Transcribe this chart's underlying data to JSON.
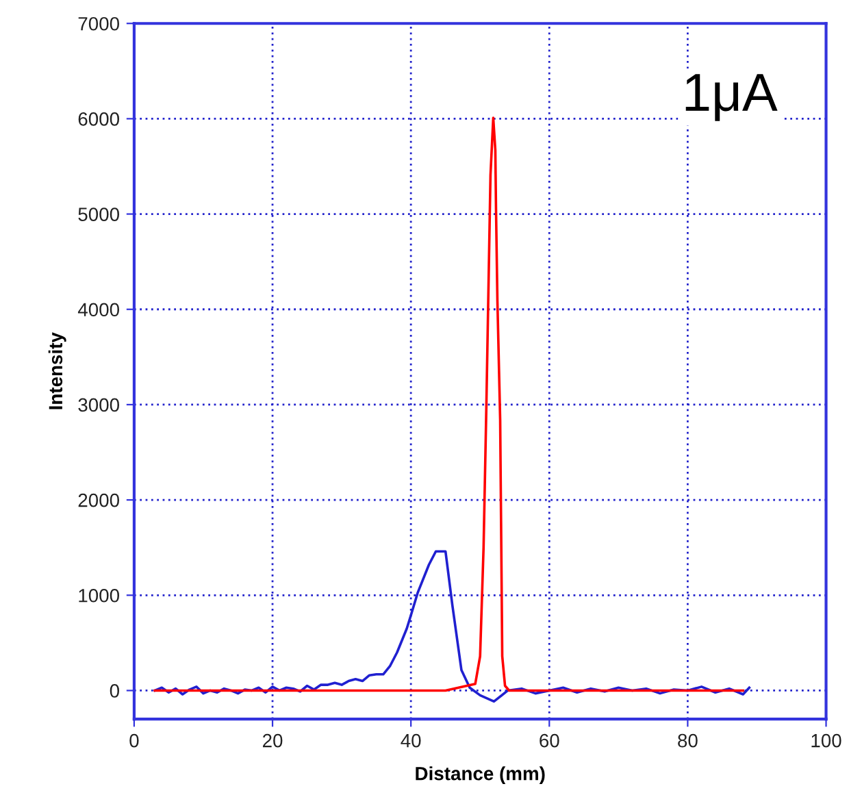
{
  "chart_data": {
    "type": "line",
    "xlabel": "Distance (mm)",
    "ylabel": "Intensity",
    "annotations": [
      "1μA"
    ],
    "xlim": [
      0,
      100
    ],
    "xticks": [
      0,
      20,
      40,
      60,
      80,
      100
    ],
    "ylim": [
      -300,
      7000
    ],
    "yticks": [
      0,
      1000,
      2000,
      3000,
      4000,
      5000,
      6000,
      7000
    ],
    "grid": true,
    "marker": "none",
    "line_style": "solid",
    "series": [
      {
        "color": "#2020d0",
        "x": [
          3,
          4,
          5,
          6,
          7,
          8,
          9,
          10,
          11,
          12,
          13,
          14,
          15,
          16,
          17,
          18,
          19,
          20,
          21,
          22,
          23,
          24,
          25,
          26,
          27,
          28,
          29,
          30,
          31,
          32,
          33,
          34,
          35,
          36,
          37,
          38,
          39.4,
          40,
          41,
          42.6,
          43.6,
          45,
          46,
          47.3,
          48.5,
          50,
          52,
          54,
          56,
          58,
          60,
          62,
          64,
          66,
          68,
          70,
          72,
          74,
          76,
          78,
          80,
          82,
          84,
          86,
          88,
          88.9
        ],
        "values": [
          0,
          30,
          -20,
          20,
          -40,
          10,
          40,
          -30,
          0,
          -20,
          20,
          0,
          -30,
          10,
          0,
          30,
          -20,
          40,
          0,
          30,
          20,
          -10,
          50,
          10,
          60,
          60,
          80,
          60,
          100,
          120,
          100,
          160,
          170,
          170,
          260,
          400,
          650,
          790,
          1030,
          1320,
          1460,
          1460,
          890,
          215,
          30,
          -50,
          -115,
          0,
          20,
          -30,
          0,
          30,
          -20,
          20,
          -10,
          30,
          0,
          20,
          -30,
          10,
          0,
          40,
          -20,
          20,
          -40,
          30
        ]
      },
      {
        "color": "#ff0000",
        "x": [
          3,
          10,
          20,
          30,
          40,
          45,
          49.3,
          50,
          50.5,
          50.9,
          51.2,
          51.5,
          51.9,
          52.2,
          52.3,
          52.5,
          52.9,
          53.2,
          53.6,
          54.2,
          60,
          70,
          80,
          88
        ],
        "values": [
          0,
          0,
          0,
          0,
          0,
          0,
          70,
          360,
          1500,
          2970,
          4190,
          5410,
          6010,
          5670,
          5050,
          4090,
          2840,
          360,
          50,
          0,
          0,
          0,
          0,
          0
        ]
      }
    ]
  }
}
